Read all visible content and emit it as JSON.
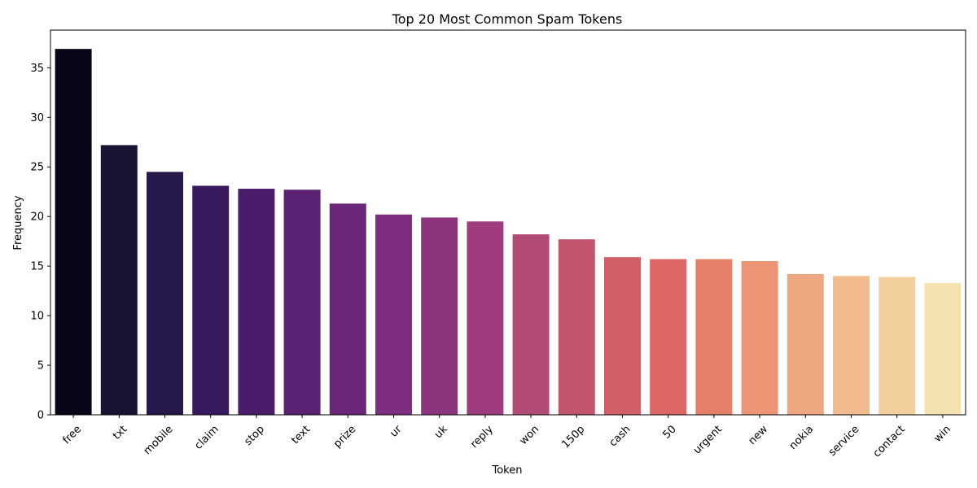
{
  "chart_data": {
    "type": "bar",
    "title": "Top 20 Most Common Spam Tokens",
    "xlabel": "Token",
    "ylabel": "Frequency",
    "ylim": [
      0,
      38.8
    ],
    "yticks": [
      0,
      5,
      10,
      15,
      20,
      25,
      30,
      35
    ],
    "categories": [
      "free",
      "txt",
      "mobile",
      "claim",
      "stop",
      "text",
      "prize",
      "ur",
      "uk",
      "reply",
      "won",
      "150p",
      "cash",
      "50",
      "urgent",
      "new",
      "nokia",
      "service",
      "contact",
      "win"
    ],
    "values": [
      36.9,
      27.2,
      24.5,
      23.1,
      22.8,
      22.7,
      21.3,
      20.2,
      19.9,
      19.5,
      18.2,
      17.7,
      15.9,
      15.7,
      15.7,
      15.5,
      14.2,
      14.0,
      13.9,
      13.3
    ],
    "colors": [
      "#090717",
      "#181333",
      "#26184a",
      "#37195d",
      "#491d6b",
      "#5b2274",
      "#6b267a",
      "#7c2d7f",
      "#8c347e",
      "#9e3c7d",
      "#b24a76",
      "#c2546e",
      "#d25e67",
      "#dd6563",
      "#e6806a",
      "#ec9473",
      "#eea780",
      "#f1bb8d",
      "#f2cf9b",
      "#f4e3b1"
    ],
    "grid": false,
    "legend": "none"
  }
}
